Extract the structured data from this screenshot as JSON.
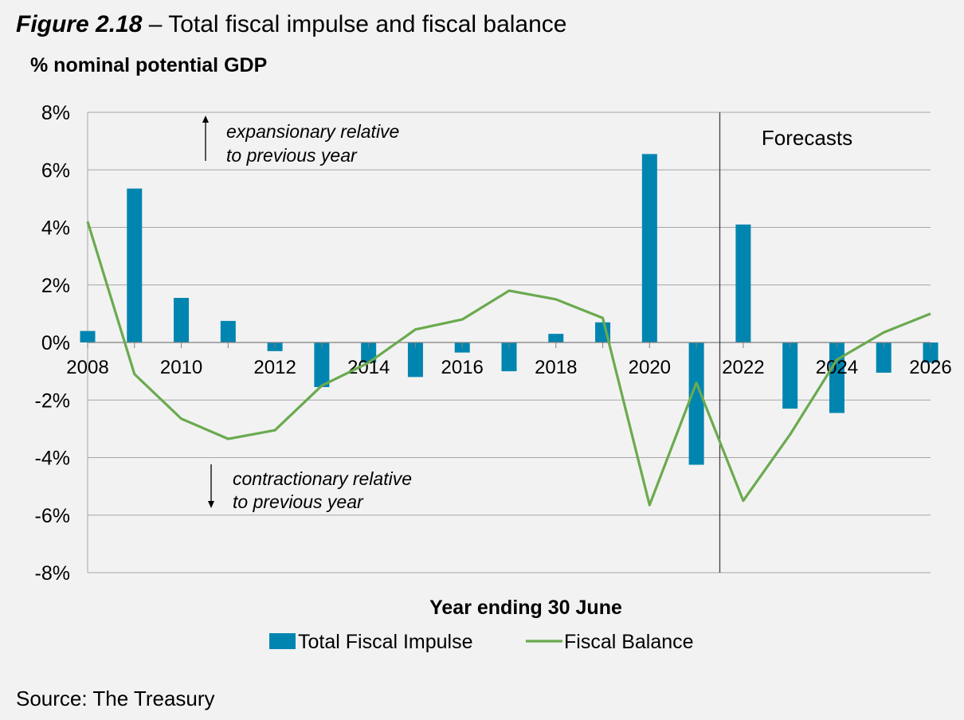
{
  "figure": {
    "number": "Figure 2.18",
    "title": "– Total fiscal impulse and fiscal balance",
    "source": "Source: The Treasury"
  },
  "chart_data": {
    "type": "bar+line",
    "title": "Total fiscal impulse and fiscal balance",
    "ylabel": "% nominal potential GDP",
    "xlabel": "Year ending 30 June",
    "ylim": [
      -8,
      8
    ],
    "yticks": [
      -8,
      -6,
      -4,
      -2,
      0,
      2,
      4,
      6,
      8
    ],
    "ytick_labels": [
      "-8%",
      "-6%",
      "-4%",
      "-2%",
      "0%",
      "2%",
      "4%",
      "6%",
      "8%"
    ],
    "x": [
      2008,
      2009,
      2010,
      2011,
      2012,
      2013,
      2014,
      2015,
      2016,
      2017,
      2018,
      2019,
      2020,
      2021,
      2022,
      2023,
      2024,
      2025,
      2026
    ],
    "xtick_labels": [
      "2008",
      "2010",
      "2012",
      "2014",
      "2016",
      "2018",
      "2020",
      "2022",
      "2024",
      "2026"
    ],
    "grid": true,
    "legend_position": "bottom",
    "series": [
      {
        "name": "Total Fiscal Impulse",
        "type": "bar",
        "color": "#0085B0",
        "values": [
          0.4,
          5.35,
          1.55,
          0.75,
          -0.3,
          -1.55,
          -0.7,
          -1.2,
          -0.35,
          -1.0,
          0.3,
          0.7,
          6.55,
          -4.25,
          4.1,
          -2.3,
          -2.45,
          -1.05,
          -0.7
        ]
      },
      {
        "name": "Fiscal Balance",
        "type": "line",
        "color": "#6AAA4F",
        "values": [
          4.2,
          -1.1,
          -2.65,
          -3.35,
          -3.05,
          -1.5,
          -0.7,
          0.45,
          0.8,
          1.8,
          1.5,
          0.85,
          -5.65,
          -1.4,
          -5.5,
          -3.2,
          -0.6,
          0.35,
          1.0
        ]
      }
    ],
    "forecast_start": 2021.5,
    "annotations": {
      "forecasts": "Forecasts",
      "expansionary_1": "expansionary relative",
      "expansionary_2": "to previous year",
      "contractionary_1": "contractionary relative",
      "contractionary_2": "to previous year"
    }
  }
}
